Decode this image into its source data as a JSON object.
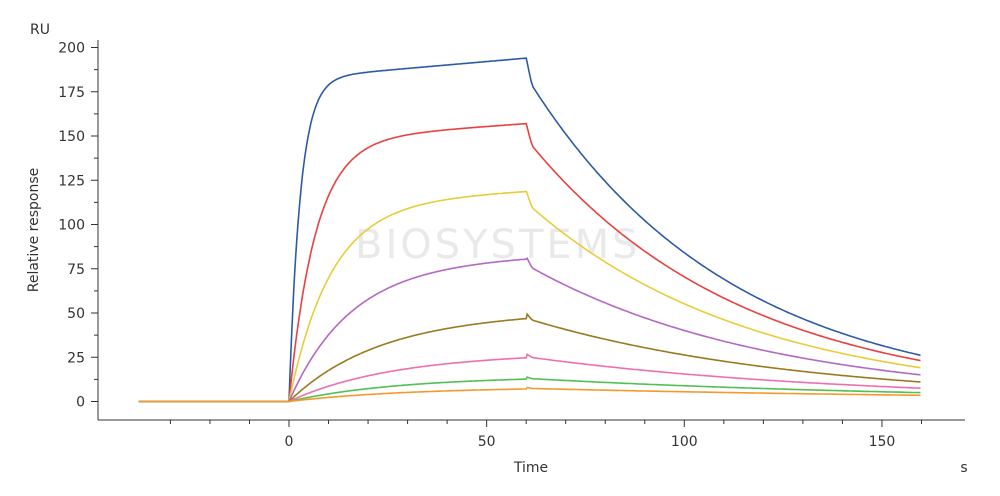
{
  "chart_data": {
    "type": "line",
    "title": "",
    "xlabel": "Time",
    "ylabel": "Relative response",
    "x_unit": "s",
    "y_unit": "RU",
    "xlim": [
      -38,
      162
    ],
    "ylim": [
      -10,
      205
    ],
    "x_ticks": [
      0,
      50,
      100,
      150
    ],
    "y_ticks": [
      0,
      25,
      50,
      75,
      100,
      125,
      150,
      175,
      200
    ],
    "grid": false,
    "legend": "none",
    "watermark": "BIOSYSTEMS",
    "baseline_x": [
      -38,
      0
    ],
    "association_x": [
      0,
      60
    ],
    "dissociation_x": [
      60,
      160
    ],
    "series": [
      {
        "color": "#2c5aa8",
        "plateau": 194,
        "end": 26,
        "ka": 0.35
      },
      {
        "color": "#e8413f",
        "plateau": 157,
        "end": 23,
        "ka": 0.15
      },
      {
        "color": "#e8cc3a",
        "plateau": 119,
        "end": 19,
        "ka": 0.095
      },
      {
        "color": "#b268c4",
        "plateau": 82,
        "end": 15,
        "ka": 0.065
      },
      {
        "color": "#9a7a1e",
        "plateau": 50,
        "end": 11,
        "ka": 0.045
      },
      {
        "color": "#ee6fae",
        "plateau": 27,
        "end": 7.5,
        "ka": 0.04
      },
      {
        "color": "#52bf55",
        "plateau": 14,
        "end": 5,
        "ka": 0.038
      },
      {
        "color": "#f39a2e",
        "plateau": 8,
        "end": 3.5,
        "ka": 0.035
      }
    ]
  }
}
